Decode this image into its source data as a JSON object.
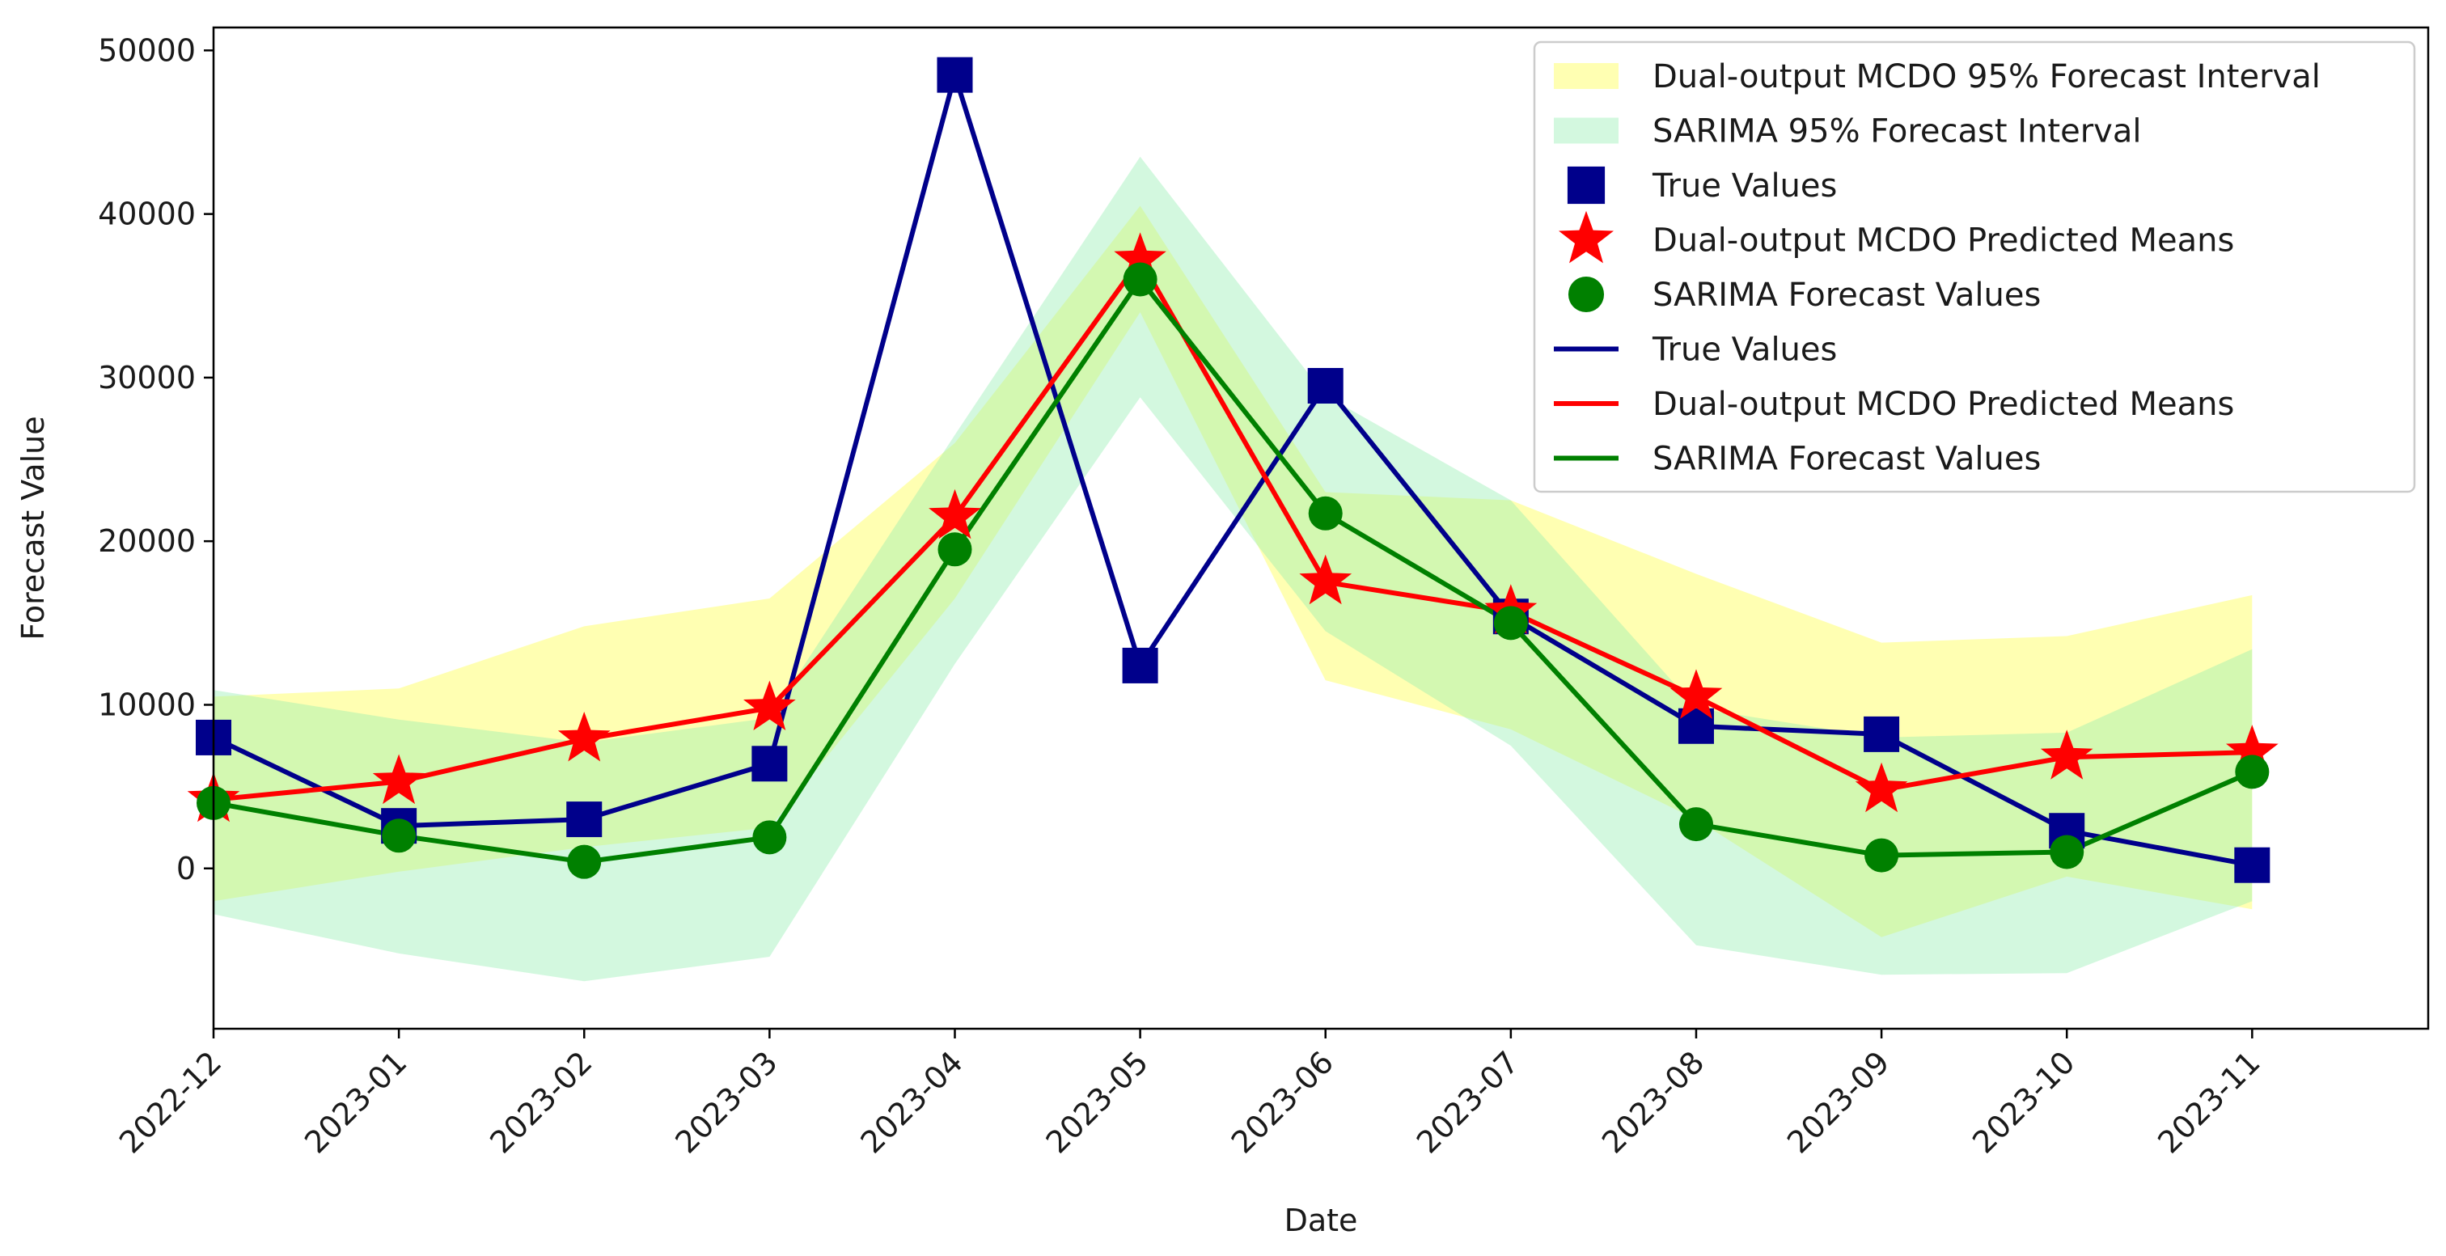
{
  "chart_data": {
    "type": "line",
    "title": "",
    "xlabel": "Date",
    "ylabel": "Forecast Value",
    "categories": [
      "2022-12",
      "2023-01",
      "2023-02",
      "2023-03",
      "2023-04",
      "2023-05",
      "2023-06",
      "2023-07",
      "2023-08",
      "2023-09",
      "2023-10",
      "2023-11"
    ],
    "yticks": [
      0,
      10000,
      20000,
      30000,
      40000,
      50000
    ],
    "ylim": [
      -9800,
      51400
    ],
    "xlim": [
      0,
      11.95
    ],
    "grid": false,
    "legend_position": "top-right",
    "series": [
      {
        "name": "True Values",
        "marker": "square",
        "color": "#00008b",
        "values": [
          8000,
          2600,
          3000,
          6400,
          48500,
          12400,
          29500,
          15400,
          8700,
          8200,
          2300,
          200
        ]
      },
      {
        "name": "Dual-output MCDO Predicted Means",
        "marker": "star",
        "color": "#ff0000",
        "values": [
          4200,
          5300,
          7900,
          9800,
          21500,
          37200,
          17500,
          15700,
          10500,
          4800,
          6800,
          7100
        ]
      },
      {
        "name": "SARIMA Forecast Values",
        "marker": "circle",
        "color": "#008000",
        "values": [
          4000,
          2000,
          400,
          1900,
          19500,
          36000,
          21700,
          15000,
          2700,
          800,
          1000,
          5900
        ]
      }
    ],
    "intervals": [
      {
        "name": "Dual-output MCDO 95% Forecast Interval",
        "color": "#ffff66",
        "lower": [
          -2000,
          -200,
          1300,
          2500,
          16500,
          34000,
          11500,
          8500,
          3000,
          -4200,
          -500,
          -2500
        ],
        "upper": [
          10500,
          11000,
          14800,
          16500,
          26000,
          40500,
          23000,
          22500,
          18000,
          13800,
          14200,
          16700
        ]
      },
      {
        "name": "SARIMA 95% Forecast Interval",
        "color": "#90eeb0",
        "lower": [
          -2800,
          -5200,
          -6900,
          -5400,
          12500,
          28800,
          14500,
          7500,
          -4700,
          -6500,
          -6400,
          -2000
        ],
        "upper": [
          10900,
          9100,
          7700,
          9200,
          26500,
          43500,
          28900,
          22500,
          9800,
          8000,
          8300,
          13400
        ]
      }
    ],
    "legend": [
      {
        "label": "Dual-output MCDO 95% Forecast Interval",
        "kind": "patch",
        "color": "#ffff66"
      },
      {
        "label": "SARIMA 95% Forecast Interval",
        "kind": "patch",
        "color": "#90eeb0"
      },
      {
        "label": "True Values",
        "kind": "square",
        "color": "#00008b"
      },
      {
        "label": "Dual-output MCDO Predicted Means",
        "kind": "star",
        "color": "#ff0000"
      },
      {
        "label": "SARIMA Forecast Values",
        "kind": "circle",
        "color": "#008000"
      },
      {
        "label": "True Values",
        "kind": "line",
        "color": "#00008b"
      },
      {
        "label": "Dual-output MCDO Predicted Means",
        "kind": "line",
        "color": "#ff0000"
      },
      {
        "label": "SARIMA Forecast Values",
        "kind": "line",
        "color": "#008000"
      }
    ]
  }
}
